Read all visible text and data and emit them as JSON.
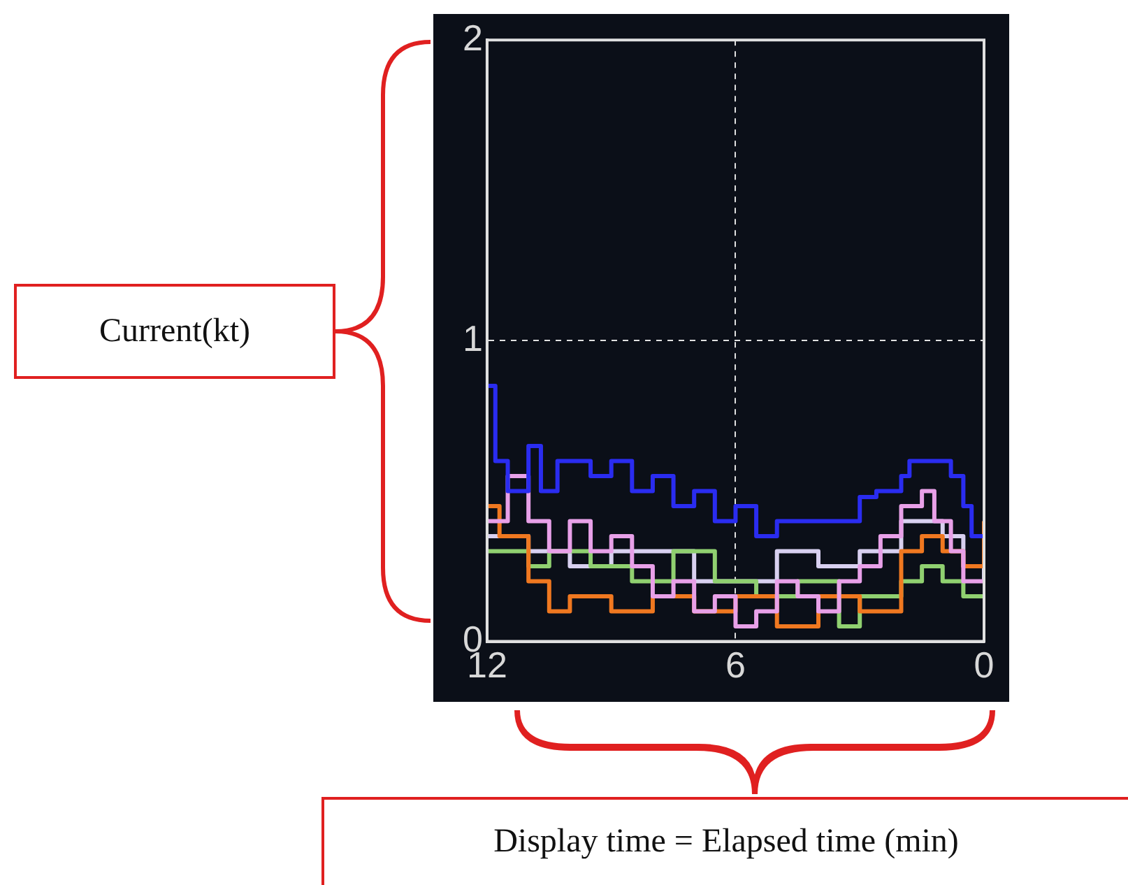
{
  "chart_data": {
    "type": "step",
    "annotations": [
      "Current(kt)",
      "Display time = Elapsed time (min)"
    ],
    "xlim": [
      12,
      0
    ],
    "xticks": [
      12,
      6,
      0
    ],
    "ylim": [
      0,
      2
    ],
    "yticks": [
      0,
      1,
      2
    ],
    "grid": true,
    "legend": false,
    "series": [
      {
        "color": "#2a2cf0",
        "x": [
          12,
          11.8,
          11.5,
          11,
          10.7,
          10.3,
          9.5,
          9,
          8.5,
          8,
          7.5,
          7,
          6.5,
          6,
          5.5,
          5,
          4,
          3.2,
          3,
          2.6,
          2,
          1.8,
          0.8,
          0.5,
          0.3,
          0
        ],
        "values": [
          0.85,
          0.6,
          0.5,
          0.65,
          0.5,
          0.6,
          0.55,
          0.6,
          0.5,
          0.55,
          0.45,
          0.5,
          0.4,
          0.45,
          0.35,
          0.4,
          0.4,
          0.4,
          0.48,
          0.5,
          0.55,
          0.6,
          0.55,
          0.45,
          0.35,
          0.35
        ]
      },
      {
        "color": "#e8a0e8",
        "x": [
          12,
          11.5,
          11,
          10.5,
          10,
          9.5,
          9,
          8.5,
          8,
          7.5,
          7,
          6.5,
          6,
          5.5,
          5,
          4.5,
          4,
          3.5,
          3,
          2.5,
          2,
          1.5,
          1.2,
          0.8,
          0.5,
          0
        ],
        "values": [
          0.4,
          0.55,
          0.4,
          0.3,
          0.4,
          0.3,
          0.35,
          0.25,
          0.15,
          0.2,
          0.1,
          0.15,
          0.05,
          0.1,
          0.2,
          0.15,
          0.1,
          0.2,
          0.25,
          0.35,
          0.45,
          0.5,
          0.4,
          0.3,
          0.2,
          0.2
        ]
      },
      {
        "color": "#f07820",
        "x": [
          12,
          11.7,
          11,
          10.5,
          10,
          9,
          8,
          7,
          6,
          5,
          4,
          3,
          2,
          1.5,
          1,
          0.5,
          0
        ],
        "values": [
          0.45,
          0.35,
          0.2,
          0.1,
          0.15,
          0.1,
          0.15,
          0.1,
          0.15,
          0.05,
          0.15,
          0.1,
          0.3,
          0.35,
          0.3,
          0.25,
          0.4
        ]
      },
      {
        "color": "#90d070",
        "x": [
          12,
          11,
          10.5,
          9.5,
          8.5,
          7.5,
          6.5,
          5.5,
          4.5,
          3.5,
          3,
          2,
          1.5,
          1,
          0.5,
          0
        ],
        "values": [
          0.3,
          0.25,
          0.3,
          0.25,
          0.2,
          0.3,
          0.2,
          0.15,
          0.2,
          0.05,
          0.15,
          0.2,
          0.25,
          0.2,
          0.15,
          0.15
        ]
      },
      {
        "color": "#d8d0f0",
        "x": [
          12,
          11,
          10,
          9,
          8,
          7,
          6,
          5,
          4,
          3,
          2,
          1,
          0.5,
          0
        ],
        "values": [
          0.35,
          0.3,
          0.25,
          0.3,
          0.3,
          0.2,
          0.2,
          0.3,
          0.25,
          0.3,
          0.4,
          0.35,
          0.25,
          0.2
        ]
      }
    ]
  }
}
